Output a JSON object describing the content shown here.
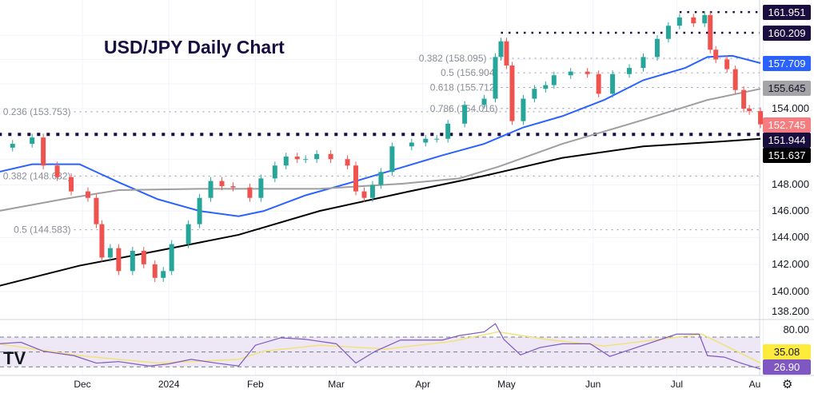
{
  "title": "USD/JPY Daily Chart",
  "colors": {
    "up": "#26a69a",
    "down": "#ef5350",
    "ma_blue": "#2962ff",
    "ma_gray": "#9e9e9e",
    "ma_black": "#000000",
    "level": "#1a0d40",
    "rsi": "#7e57c2",
    "rsi_ma": "#f2e27a",
    "rsi_band": "#ede7f6"
  },
  "chart_data": {
    "type": "candlestick",
    "title": "USD/JPY Daily Chart",
    "y_scale": "log",
    "ylim": [
      138.2,
      162.5
    ],
    "y_ticks": [
      "154.000",
      "148.000",
      "146.000",
      "144.000",
      "142.000",
      "140.000",
      "138.200"
    ],
    "x_ticks": [
      [
        "Dec",
        "2023-12-01"
      ],
      [
        "2024",
        "2024-01-01"
      ],
      [
        "Feb",
        "2024-02-01"
      ],
      [
        "Mar",
        "2024-03-01"
      ],
      [
        "Apr",
        "2024-04-01"
      ],
      [
        "May",
        "2024-05-01"
      ],
      [
        "Jun",
        "2024-06-01"
      ],
      [
        "Jul",
        "2024-07-01"
      ],
      [
        "Au",
        "2024-08-01"
      ]
    ],
    "closes": [
      [
        "2023-11-01",
        150.9
      ],
      [
        "2023-11-06",
        151.2
      ],
      [
        "2023-11-13",
        151.7
      ],
      [
        "2023-11-17",
        149.5
      ],
      [
        "2023-11-22",
        148.6
      ],
      [
        "2023-11-27",
        147.5
      ],
      [
        "2023-12-03",
        147.0
      ],
      [
        "2023-12-06",
        145.0
      ],
      [
        "2023-12-08",
        142.5
      ],
      [
        "2023-12-11",
        143.2
      ],
      [
        "2023-12-14",
        141.5
      ],
      [
        "2023-12-19",
        143.0
      ],
      [
        "2023-12-23",
        142.0
      ],
      [
        "2023-12-27",
        141.0
      ],
      [
        "2023-12-30",
        141.5
      ],
      [
        "2024-01-02",
        143.5
      ],
      [
        "2024-01-08",
        145.0
      ],
      [
        "2024-01-12",
        147.0
      ],
      [
        "2024-01-16",
        148.3
      ],
      [
        "2024-01-20",
        147.9
      ],
      [
        "2024-01-24",
        147.8
      ],
      [
        "2024-01-30",
        147.0
      ],
      [
        "2024-02-03",
        148.5
      ],
      [
        "2024-02-08",
        149.5
      ],
      [
        "2024-02-12",
        150.2
      ],
      [
        "2024-02-16",
        150.0
      ],
      [
        "2024-02-19",
        150.0
      ],
      [
        "2024-02-23",
        150.4
      ],
      [
        "2024-02-28",
        150.0
      ],
      [
        "2024-03-05",
        149.5
      ],
      [
        "2024-03-08",
        147.5
      ],
      [
        "2024-03-11",
        147.0
      ],
      [
        "2024-03-14",
        148.0
      ],
      [
        "2024-03-17",
        149.0
      ],
      [
        "2024-03-21",
        151.0
      ],
      [
        "2024-03-28",
        151.3
      ],
      [
        "2024-04-02",
        151.6
      ],
      [
        "2024-04-06",
        151.6
      ],
      [
        "2024-04-10",
        152.8
      ],
      [
        "2024-04-16",
        154.3
      ],
      [
        "2024-04-23",
        154.8
      ],
      [
        "2024-04-27",
        158.2
      ],
      [
        "2024-04-29",
        159.5
      ],
      [
        "2024-05-01",
        157.5
      ],
      [
        "2024-05-03",
        153.0
      ],
      [
        "2024-05-07",
        154.8
      ],
      [
        "2024-05-11",
        155.6
      ],
      [
        "2024-05-15",
        155.9
      ],
      [
        "2024-05-18",
        156.7
      ],
      [
        "2024-05-24",
        157.0
      ],
      [
        "2024-05-30",
        156.8
      ],
      [
        "2024-06-03",
        155.2
      ],
      [
        "2024-06-08",
        156.8
      ],
      [
        "2024-06-14",
        157.3
      ],
      [
        "2024-06-19",
        158.2
      ],
      [
        "2024-06-24",
        159.7
      ],
      [
        "2024-06-28",
        160.8
      ],
      [
        "2024-07-02",
        161.5
      ],
      [
        "2024-07-07",
        161.0
      ],
      [
        "2024-07-11",
        161.7
      ],
      [
        "2024-07-13",
        158.8
      ],
      [
        "2024-07-15",
        158.0
      ],
      [
        "2024-07-19",
        157.2
      ],
      [
        "2024-07-22",
        155.5
      ],
      [
        "2024-07-25",
        154.0
      ],
      [
        "2024-07-27",
        153.8
      ],
      [
        "2024-07-31",
        152.745
      ]
    ],
    "moving_averages": [
      {
        "color": "#2962ff",
        "last": "157.709",
        "points": [
          [
            "2023-11-01",
            149.0
          ],
          [
            "2023-11-13",
            149.6
          ],
          [
            "2023-11-30",
            149.6
          ],
          [
            "2023-12-14",
            148.2
          ],
          [
            "2023-12-28",
            146.9
          ],
          [
            "2024-01-12",
            146.0
          ],
          [
            "2024-01-26",
            145.6
          ],
          [
            "2024-02-04",
            146.0
          ],
          [
            "2024-02-19",
            147.2
          ],
          [
            "2024-03-05",
            148.1
          ],
          [
            "2024-03-19",
            149.0
          ],
          [
            "2024-04-08",
            150.3
          ],
          [
            "2024-04-23",
            151.2
          ],
          [
            "2024-05-07",
            152.5
          ],
          [
            "2024-05-21",
            153.4
          ],
          [
            "2024-06-05",
            154.7
          ],
          [
            "2024-06-19",
            156.3
          ],
          [
            "2024-07-04",
            157.3
          ],
          [
            "2024-07-12",
            158.2
          ],
          [
            "2024-07-21",
            158.3
          ],
          [
            "2024-07-31",
            157.7
          ]
        ]
      },
      {
        "color": "#9e9e9e",
        "last": "155.645",
        "points": [
          [
            "2023-11-01",
            146.0
          ],
          [
            "2023-11-24",
            146.9
          ],
          [
            "2023-12-14",
            147.6
          ],
          [
            "2024-01-12",
            147.7
          ],
          [
            "2024-02-24",
            147.7
          ],
          [
            "2024-03-25",
            148.1
          ],
          [
            "2024-04-14",
            148.5
          ],
          [
            "2024-04-28",
            149.4
          ],
          [
            "2024-05-21",
            151.2
          ],
          [
            "2024-06-19",
            153.1
          ],
          [
            "2024-07-12",
            154.7
          ],
          [
            "2024-07-31",
            155.6
          ]
        ]
      },
      {
        "color": "#000000",
        "last": "151.637",
        "points": [
          [
            "2023-11-01",
            140.4
          ],
          [
            "2023-11-30",
            141.9
          ],
          [
            "2023-12-28",
            143.0
          ],
          [
            "2024-01-26",
            144.2
          ],
          [
            "2024-02-24",
            146.0
          ],
          [
            "2024-03-25",
            147.4
          ],
          [
            "2024-04-23",
            148.7
          ],
          [
            "2024-05-21",
            150.1
          ],
          [
            "2024-06-19",
            151.0
          ],
          [
            "2024-07-18",
            151.4
          ],
          [
            "2024-07-31",
            151.6
          ]
        ]
      }
    ],
    "levels": [
      {
        "value": 161.951,
        "label": "161.951",
        "from": "2024-07-02",
        "style": "dark"
      },
      {
        "value": 160.209,
        "label": "160.209",
        "from": "2024-04-29",
        "style": "dark"
      },
      {
        "value": 151.944,
        "label": "151.944",
        "from": "2023-11-01",
        "style": "dark-thick"
      }
    ],
    "fib_levels": [
      {
        "value": 158.095,
        "text": "0.382 (158.095)",
        "from": "2024-04-25"
      },
      {
        "value": 156.904,
        "text": "0.5 (156.904)",
        "from": "2024-04-29"
      },
      {
        "value": 155.712,
        "text": "0.618 (155.712)",
        "from": "2024-04-29"
      },
      {
        "value": 154.016,
        "text": "0.786 (154.016)",
        "from": "2024-04-29"
      },
      {
        "value": 153.753,
        "text": "0.236 (153.753)",
        "from": "2023-11-28"
      },
      {
        "value": 148.682,
        "text": "0.382 (148.682)",
        "from": "2023-11-28"
      },
      {
        "value": 144.583,
        "text": "0.5 (144.583)",
        "from": "2023-11-28"
      }
    ],
    "price_tags": [
      {
        "label": "161.951",
        "value": 161.951,
        "bg": "#1a0d40",
        "fg": "#ffffff"
      },
      {
        "label": "160.209",
        "value": 160.209,
        "bg": "#1a0d40",
        "fg": "#ffffff"
      },
      {
        "label": "157.709",
        "value": 157.709,
        "bg": "#2962ff",
        "fg": "#ffffff"
      },
      {
        "label": "155.645",
        "value": 155.645,
        "bg": "#a3a3a8",
        "fg": "#131722"
      },
      {
        "label": "152.745",
        "value": 152.745,
        "bg": "#f77c80",
        "fg": "#ffffff"
      },
      {
        "label": "151.944",
        "value": 151.944,
        "bg": "#1a0d40",
        "fg": "#ffffff"
      },
      {
        "label": "151.637",
        "value": 151.637,
        "bg": "#000000",
        "fg": "#ffffff"
      }
    ],
    "rsi": {
      "tick": "80.00",
      "bands": [
        70,
        50,
        30
      ],
      "last": "26.90",
      "ma_last": "35.08",
      "values": [
        [
          "2023-11-01",
          61
        ],
        [
          "2023-11-05",
          62
        ],
        [
          "2023-11-09",
          63
        ],
        [
          "2023-11-17",
          51
        ],
        [
          "2023-11-28",
          45
        ],
        [
          "2023-12-06",
          35
        ],
        [
          "2023-12-14",
          37
        ],
        [
          "2023-12-25",
          31
        ],
        [
          "2024-01-01",
          34
        ],
        [
          "2024-01-09",
          40
        ],
        [
          "2024-01-18",
          35
        ],
        [
          "2024-01-26",
          31
        ],
        [
          "2024-02-01",
          59
        ],
        [
          "2024-02-10",
          69
        ],
        [
          "2024-02-19",
          67
        ],
        [
          "2024-03-01",
          61
        ],
        [
          "2024-03-08",
          35
        ],
        [
          "2024-03-15",
          51
        ],
        [
          "2024-03-24",
          66
        ],
        [
          "2024-04-08",
          66
        ],
        [
          "2024-04-14",
          72
        ],
        [
          "2024-04-23",
          77
        ],
        [
          "2024-04-27",
          88
        ],
        [
          "2024-04-30",
          67
        ],
        [
          "2024-05-06",
          46
        ],
        [
          "2024-05-13",
          56
        ],
        [
          "2024-05-21",
          61
        ],
        [
          "2024-05-31",
          61
        ],
        [
          "2024-06-07",
          44
        ],
        [
          "2024-06-19",
          59
        ],
        [
          "2024-07-01",
          74
        ],
        [
          "2024-07-09",
          74
        ],
        [
          "2024-07-12",
          45
        ],
        [
          "2024-07-18",
          43
        ],
        [
          "2024-07-24",
          35
        ],
        [
          "2024-07-31",
          26.9
        ]
      ],
      "ma": [
        [
          "2023-11-01",
          61
        ],
        [
          "2023-11-30",
          45
        ],
        [
          "2023-12-28",
          35
        ],
        [
          "2024-01-26",
          40
        ],
        [
          "2024-02-04",
          51
        ],
        [
          "2024-02-24",
          59
        ],
        [
          "2024-03-19",
          54
        ],
        [
          "2024-04-11",
          64
        ],
        [
          "2024-04-28",
          77
        ],
        [
          "2024-05-15",
          67
        ],
        [
          "2024-06-05",
          58
        ],
        [
          "2024-06-25",
          67
        ],
        [
          "2024-07-10",
          74
        ],
        [
          "2024-07-31",
          35.08
        ]
      ]
    }
  }
}
